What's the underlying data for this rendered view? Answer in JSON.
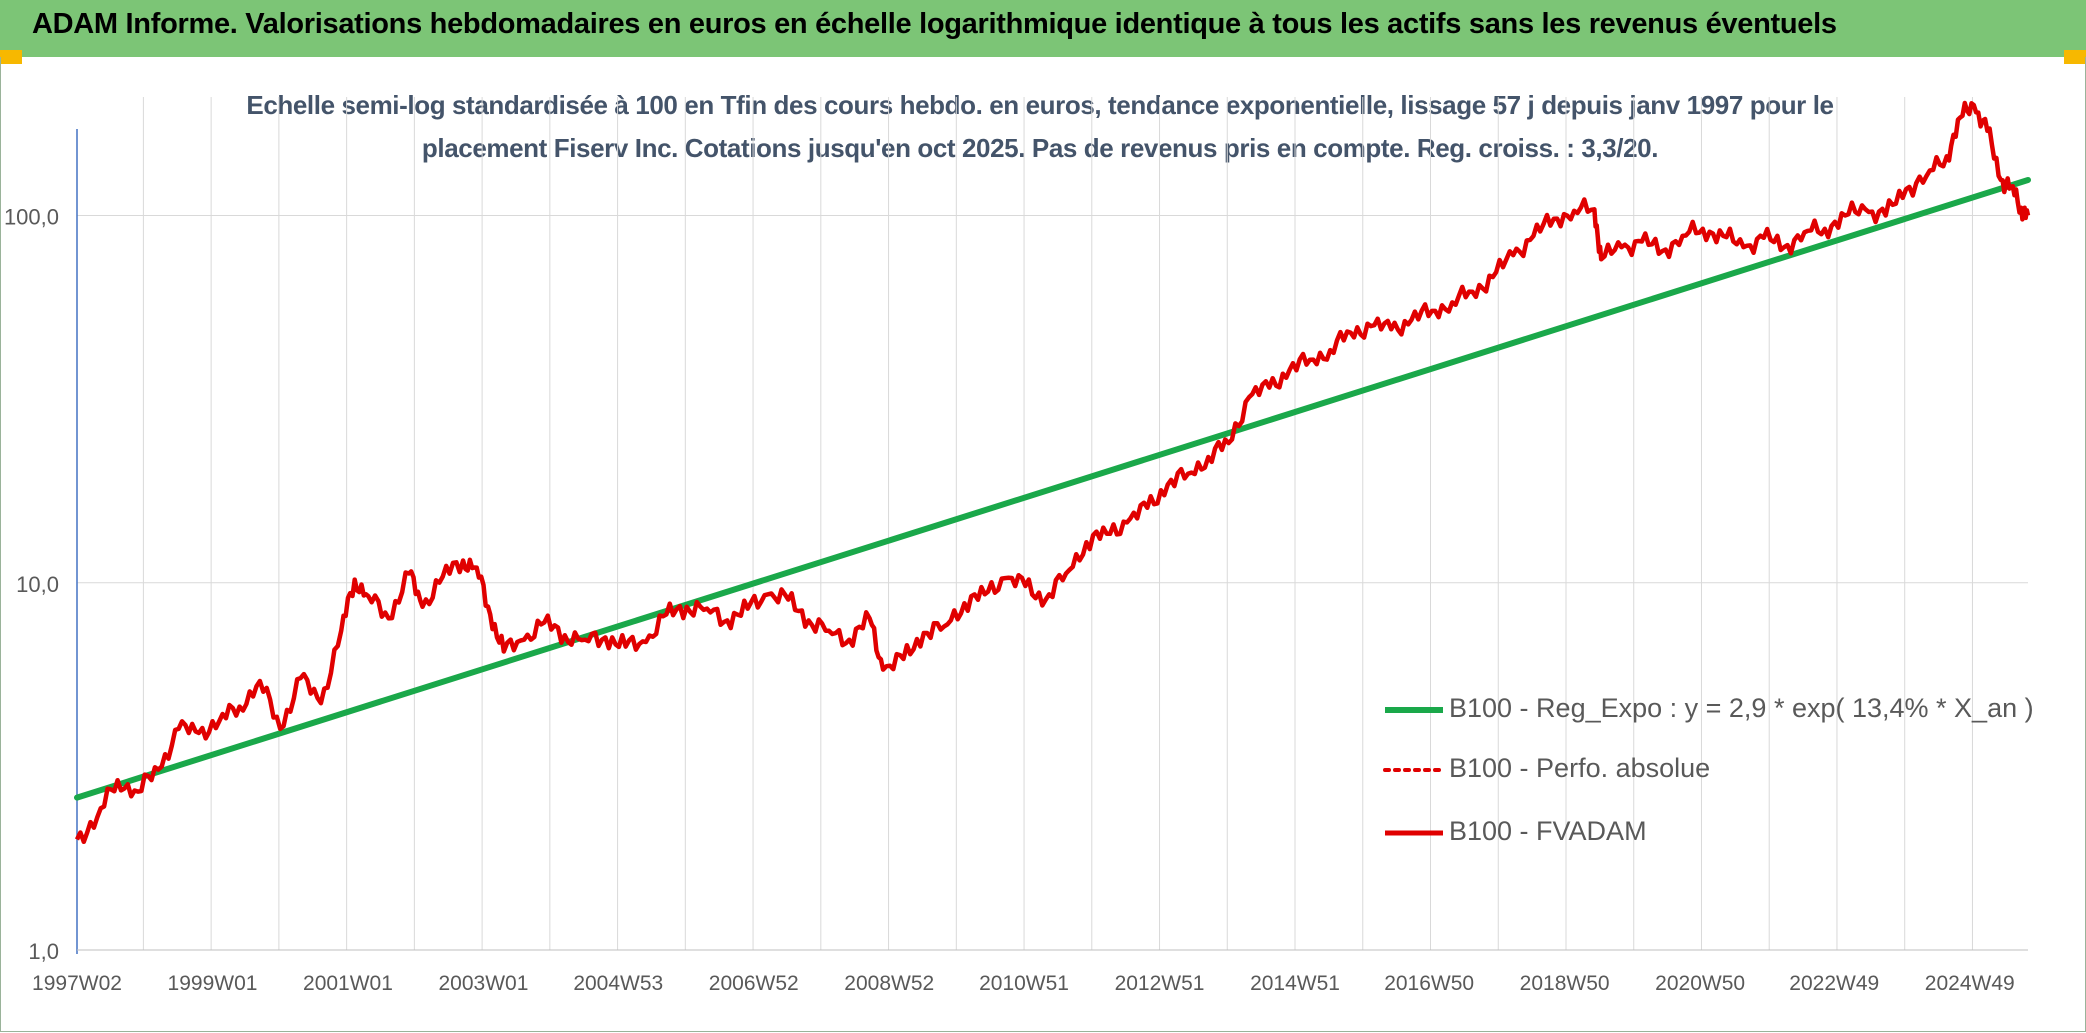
{
  "header": {
    "title": "ADAM Informe. Valorisations hebdomadaires en euros en échelle logarithmique identique à tous les actifs sans les revenus éventuels"
  },
  "colors": {
    "banner": "#7cc576",
    "corner_accent": "#f7b800",
    "trend": "#1aa84a",
    "fvadam": "#e00000",
    "perfo": "#e00000",
    "grid": "#d9d9d9"
  },
  "chart_data": {
    "type": "line",
    "title_line1": "Echelle semi-log standardisée à 100 en Tfin des cours hebdo. en euros, tendance exponentielle, lissage 57 j depuis janv 1997 pour le",
    "title_line2": "placement Fiserv Inc. Cotations jusqu'en oct 2025. Pas de revenus pris en compte. Reg. croiss. : 3,3/20.",
    "y_scale": "log",
    "ylim": [
      1,
      200
    ],
    "xlim": [
      1997.0,
      2025.8
    ],
    "y_ticks": [
      {
        "value": 1,
        "label": "1,0"
      },
      {
        "value": 10,
        "label": "10,0"
      },
      {
        "value": 100,
        "label": "100,0"
      }
    ],
    "x_ticks": [
      {
        "value": 1997.0,
        "label": "1997W02"
      },
      {
        "value": 1999.0,
        "label": "1999W01"
      },
      {
        "value": 2001.0,
        "label": "2001W01"
      },
      {
        "value": 2003.0,
        "label": "2003W01"
      },
      {
        "value": 2004.99,
        "label": "2004W53"
      },
      {
        "value": 2006.99,
        "label": "2006W52"
      },
      {
        "value": 2008.99,
        "label": "2008W52"
      },
      {
        "value": 2010.98,
        "label": "2010W51"
      },
      {
        "value": 2012.98,
        "label": "2012W51"
      },
      {
        "value": 2014.98,
        "label": "2014W51"
      },
      {
        "value": 2016.96,
        "label": "2016W50"
      },
      {
        "value": 2018.96,
        "label": "2018W50"
      },
      {
        "value": 2020.96,
        "label": "2020W50"
      },
      {
        "value": 2022.94,
        "label": "2022W49"
      },
      {
        "value": 2024.94,
        "label": "2024W49"
      }
    ],
    "grid": true,
    "legend_position": "bottom-right",
    "series": [
      {
        "name": "B100 - Reg_Expo : y = 2,9 * exp( 13,4% *  X_an )",
        "style": "solid-thick",
        "x": [
          1997.0,
          2025.8
        ],
        "y": [
          2.6,
          125
        ]
      },
      {
        "name": "B100 - Perfo. absolue",
        "style": "dotted",
        "x": [],
        "y": []
      },
      {
        "name": "B100 - FVADAM",
        "style": "solid",
        "x": [
          1997.0,
          1997.3,
          1997.6,
          1997.9,
          1998.2,
          1998.5,
          1998.8,
          1999.1,
          1999.4,
          1999.7,
          2000.0,
          2000.3,
          2000.6,
          2000.9,
          2001.1,
          2001.3,
          2001.6,
          2001.9,
          2002.1,
          2002.4,
          2002.7,
          2002.9,
          2003.1,
          2003.3,
          2003.6,
          2003.9,
          2004.2,
          2004.5,
          2004.8,
          2005.1,
          2005.4,
          2005.7,
          2006.0,
          2006.3,
          2006.6,
          2006.9,
          2007.2,
          2007.5,
          2007.8,
          2008.1,
          2008.4,
          2008.7,
          2008.9,
          2009.2,
          2009.5,
          2009.8,
          2010.1,
          2010.4,
          2010.7,
          2011.0,
          2011.3,
          2011.6,
          2011.9,
          2012.2,
          2012.5,
          2012.8,
          2013.1,
          2013.4,
          2013.7,
          2014.0,
          2014.3,
          2014.6,
          2014.9,
          2015.2,
          2015.5,
          2015.8,
          2016.1,
          2016.4,
          2016.7,
          2017.0,
          2017.3,
          2017.6,
          2017.9,
          2018.2,
          2018.5,
          2018.8,
          2019.1,
          2019.4,
          2019.5,
          2019.8,
          2020.1,
          2020.4,
          2020.7,
          2021.0,
          2021.3,
          2021.6,
          2021.9,
          2022.2,
          2022.5,
          2022.8,
          2023.1,
          2023.4,
          2023.7,
          2024.0,
          2024.3,
          2024.6,
          2024.8,
          2025.0,
          2025.2,
          2025.4,
          2025.55,
          2025.7,
          2025.8
        ],
        "y": [
          2.0,
          2.3,
          2.9,
          2.7,
          3.1,
          4.0,
          3.9,
          4.2,
          4.6,
          5.4,
          4.0,
          5.5,
          4.7,
          7.4,
          10.2,
          9.2,
          8.0,
          10.6,
          8.6,
          10.4,
          11.5,
          11.0,
          8.2,
          6.5,
          7.0,
          7.8,
          7.2,
          7.0,
          7.1,
          6.7,
          6.9,
          8.2,
          8.6,
          8.5,
          7.9,
          8.5,
          9.3,
          9.0,
          7.9,
          7.4,
          7.0,
          8.0,
          5.8,
          6.2,
          7.3,
          7.6,
          8.8,
          9.3,
          10.3,
          9.8,
          9.0,
          10.6,
          12.9,
          13.6,
          14.6,
          16.0,
          18.5,
          19.8,
          22.0,
          24.0,
          32.0,
          34.0,
          38.0,
          40.5,
          43.0,
          48.0,
          50.0,
          49.0,
          52.0,
          55.0,
          58.0,
          62.0,
          68.0,
          78.0,
          88.0,
          98.0,
          103.0,
          104.0,
          76.0,
          82.0,
          85.0,
          80.0,
          88.0,
          92.0,
          88.0,
          82.0,
          87.0,
          82.0,
          90.0,
          92.0,
          100.0,
          104.0,
          100.0,
          118.0,
          128.0,
          145.0,
          185.0,
          200.0,
          170.0,
          125.0,
          120.0,
          105.0,
          100.0
        ]
      }
    ]
  }
}
